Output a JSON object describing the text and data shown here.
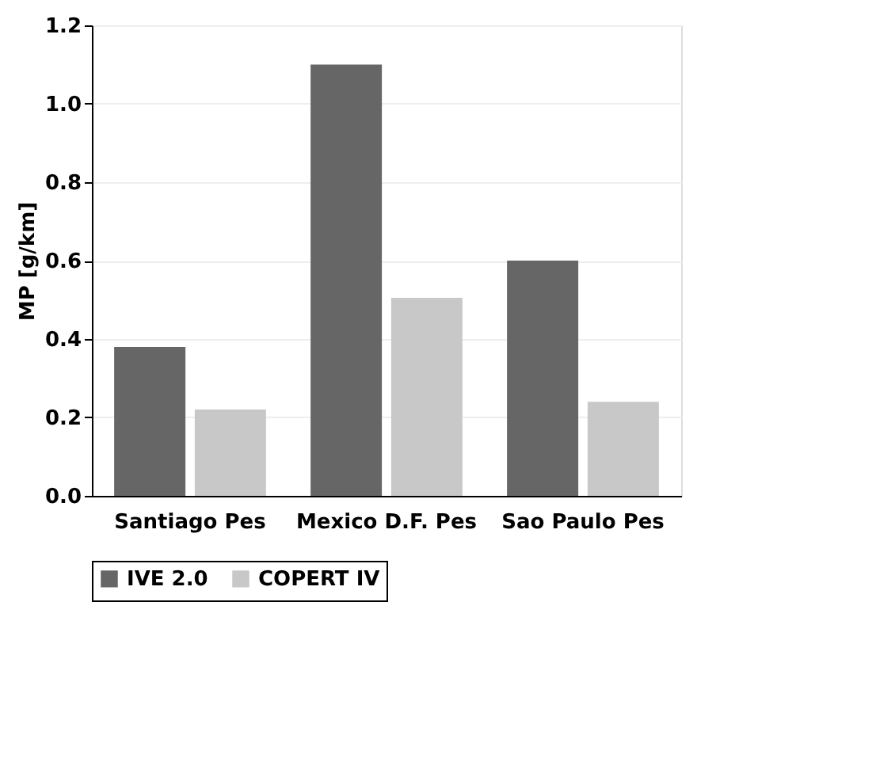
{
  "chart_data": {
    "type": "bar",
    "ylabel": "MP [g/km]",
    "categories": [
      "Santiago Pes",
      "Mexico D.F. Pes",
      "Sao Paulo Pes"
    ],
    "series": [
      {
        "name": "IVE 2.0",
        "color": "#666666",
        "values": [
          0.38,
          1.1,
          0.6
        ]
      },
      {
        "name": "COPERT IV",
        "color": "#c8c8c8",
        "values": [
          0.22,
          0.505,
          0.24
        ]
      }
    ],
    "ylim": [
      0,
      1.2
    ],
    "yticks": [
      {
        "value": 0,
        "label": "0.0"
      },
      {
        "value": 0.2,
        "label": "0.2"
      },
      {
        "value": 0.4,
        "label": "0.4"
      },
      {
        "value": 0.6,
        "label": "0.6"
      },
      {
        "value": 0.8,
        "label": "0.8"
      },
      {
        "value": 1.0,
        "label": "1.0"
      },
      {
        "value": 1.2,
        "label": "1.2"
      }
    ],
    "grid": "y",
    "legend": "bottom"
  }
}
